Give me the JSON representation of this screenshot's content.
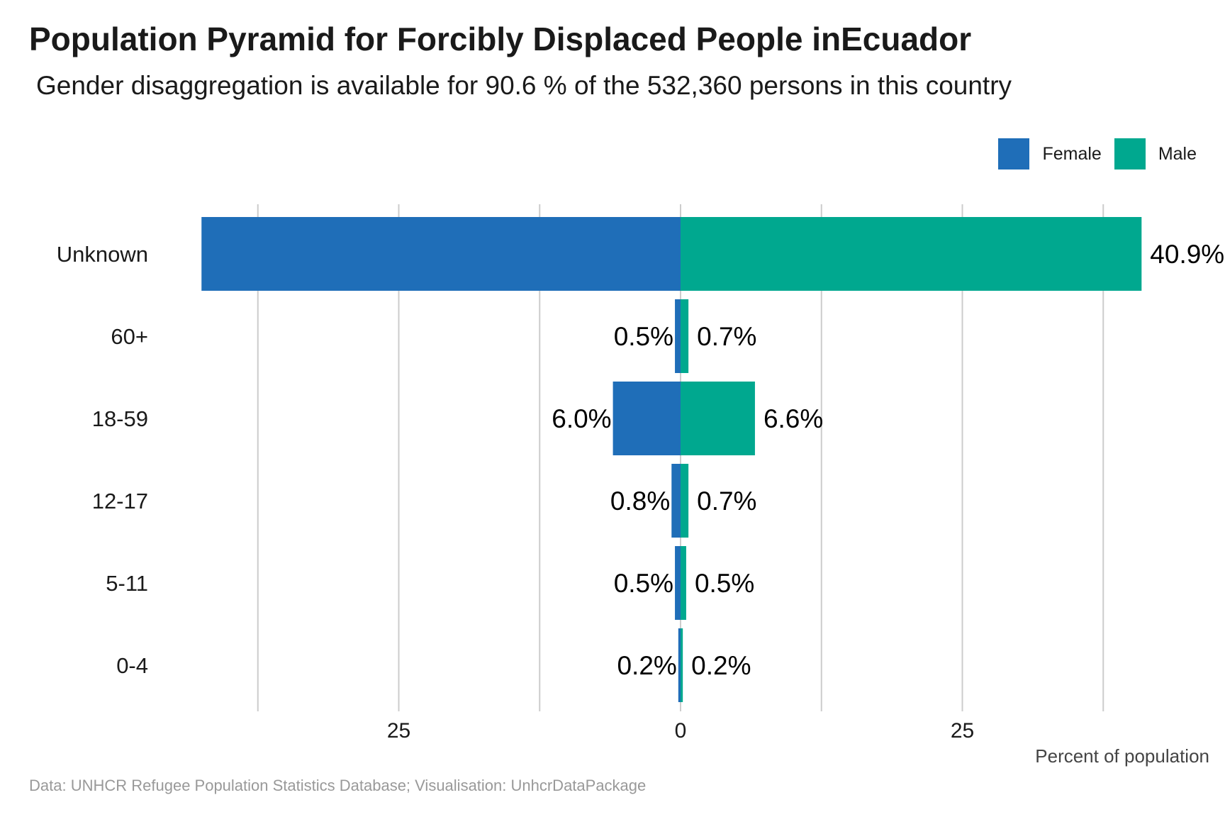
{
  "title": "Population Pyramid for Forcibly Displaced People inEcuador",
  "subtitle": "Gender disaggregation is available for 90.6 % of the 532,360 persons in this country",
  "caption": "Data: UNHCR Refugee Population Statistics Database; Visualisation: UnhcrDataPackage",
  "colors": {
    "female": "#1f6eb8",
    "male": "#00a88f",
    "grid": "#cccccc",
    "text": "#1a1a1a"
  },
  "chart_data": {
    "type": "bar",
    "orientation": "horizontal-pyramid",
    "categories": [
      "Unknown",
      "60+",
      "18-59",
      "12-17",
      "5-11",
      "0-4"
    ],
    "series": [
      {
        "name": "Female",
        "side": "left",
        "values": [
          42.5,
          0.5,
          6.0,
          0.8,
          0.5,
          0.2
        ],
        "labels": [
          "",
          "0.5%",
          "6.0%",
          "0.8%",
          "0.5%",
          "0.2%"
        ]
      },
      {
        "name": "Male",
        "side": "right",
        "values": [
          40.9,
          0.7,
          6.6,
          0.7,
          0.5,
          0.2
        ],
        "labels": [
          "40.9%",
          "0.7%",
          "6.6%",
          "0.7%",
          "0.5%",
          "0.2%"
        ]
      }
    ],
    "xlabel": "Percent of population",
    "xlim": [
      -50,
      47
    ],
    "major_ticks": [
      -25,
      0,
      25
    ],
    "tick_labels": [
      "25",
      "0",
      "25"
    ],
    "minor_gridlines": [
      -37.5,
      -12.5,
      12.5,
      37.5
    ],
    "legend_position": "top-right",
    "grid": "vertical"
  }
}
